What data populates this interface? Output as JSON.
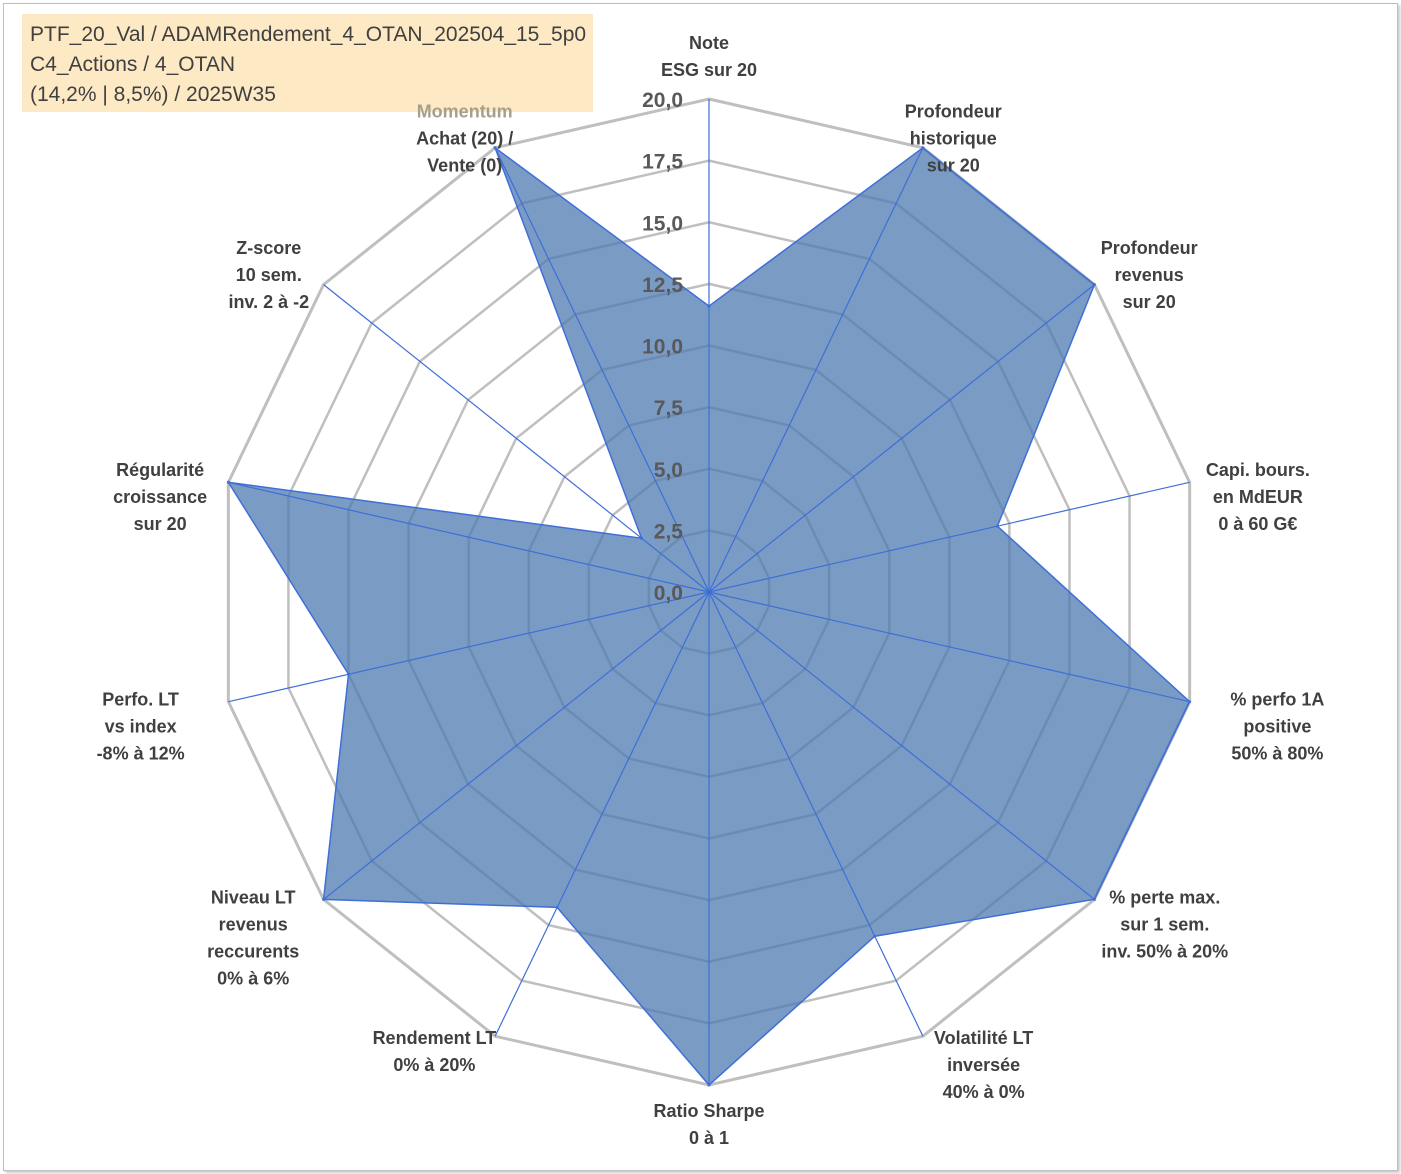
{
  "title_box": {
    "line1": "PTF_20_Val / ADAMRendement_4_OTAN_202504_15_5p0",
    "line2": "C4_Actions / 4_OTAN",
    "line3": "(14,2% | 8,5%) / 2025W35"
  },
  "colors": {
    "fill": "#4e79b0",
    "stroke": "#3e6fd8",
    "grid": "#bfbfbf",
    "highlight": "#fde9c4"
  },
  "chart_data": {
    "type": "radar",
    "title": "",
    "rlim": [
      0,
      20
    ],
    "grid": true,
    "legend": "none",
    "tick_labels": [
      "0,0",
      "2,5",
      "5,0",
      "7,5",
      "10,0",
      "12,5",
      "15,0",
      "17,5",
      "20,0"
    ],
    "axes": [
      {
        "label": [
          "Note",
          "ESG sur 20"
        ],
        "value": 11.6
      },
      {
        "label": [
          "Profondeur",
          "historique",
          "sur 20"
        ],
        "value": 20
      },
      {
        "label": [
          "Profondeur",
          "revenus",
          "sur 20"
        ],
        "value": 20
      },
      {
        "label": [
          "Capi. bours.",
          "en MdEUR",
          "0 à 60 G€"
        ],
        "value": 12
      },
      {
        "label": [
          "% perfo 1A",
          "positive",
          "50% à 80%"
        ],
        "value": 20
      },
      {
        "label": [
          "% perte max.",
          "sur 1 sem.",
          "inv. 50% à 20%"
        ],
        "value": 20
      },
      {
        "label": [
          "Volatilité LT",
          "inversée",
          "40% à 0%"
        ],
        "value": 15.5
      },
      {
        "label": [
          "Ratio Sharpe",
          "0 à 1"
        ],
        "value": 20
      },
      {
        "label": [
          "Rendement LT",
          "0% à 20%"
        ],
        "value": 14.2
      },
      {
        "label": [
          "Momentum",
          "Achat (20) /",
          "Vente (0)"
        ],
        "value": 20
      },
      {
        "label": [
          "Z-score",
          "10 sem.",
          "inv. 2 à -2"
        ],
        "value": 3.5
      },
      {
        "label": [
          "Régularité",
          "croissance",
          "sur 20"
        ],
        "value": 20
      },
      {
        "label": [
          "Perfo. LT",
          "vs index",
          "-8% à 12%"
        ],
        "value": 15
      },
      {
        "label": [
          "Niveau LT",
          "revenus",
          "reccurents",
          "0% à 6%"
        ],
        "value": 20
      }
    ],
    "display_order": [
      0,
      1,
      2,
      3,
      4,
      5,
      6,
      7,
      8,
      13,
      12,
      11,
      10,
      9
    ]
  }
}
